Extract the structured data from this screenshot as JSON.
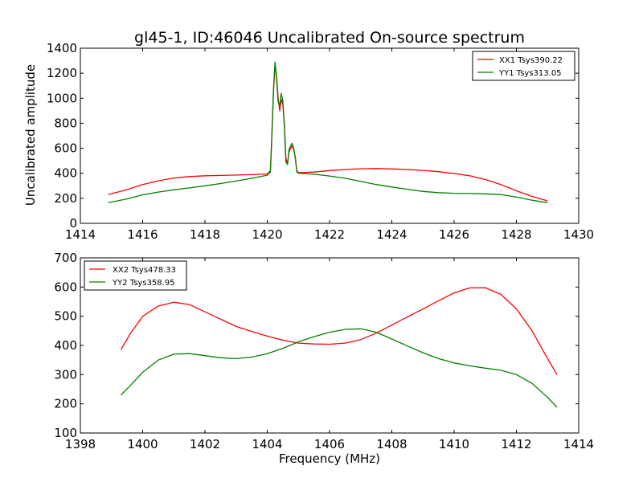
{
  "figure_title": "gl45-1, ID:46046 Uncalibrated On-source spectrum",
  "chart_data": [
    {
      "type": "line",
      "title": "gl45-1, ID:46046 Uncalibrated On-source spectrum",
      "xlabel": "",
      "ylabel": "Uncalibrated amplitude",
      "xlim": [
        1414,
        1430
      ],
      "ylim": [
        0,
        1400
      ],
      "x_ticks": [
        1414,
        1416,
        1418,
        1420,
        1422,
        1424,
        1426,
        1428,
        1430
      ],
      "y_ticks": [
        0,
        200,
        400,
        600,
        800,
        1000,
        1200,
        1400
      ],
      "legend_position": "top-right",
      "series": [
        {
          "name": "XX1 Tsys390.22",
          "color": "#ff0000",
          "points": [
            [
              1414.9,
              230
            ],
            [
              1415.5,
              270
            ],
            [
              1416.0,
              310
            ],
            [
              1416.5,
              340
            ],
            [
              1417.0,
              362
            ],
            [
              1417.5,
              374
            ],
            [
              1418.0,
              380
            ],
            [
              1418.5,
              383
            ],
            [
              1419.0,
              386
            ],
            [
              1419.5,
              389
            ],
            [
              1420.0,
              395
            ],
            [
              1420.1,
              420
            ],
            [
              1420.15,
              700
            ],
            [
              1420.2,
              1050
            ],
            [
              1420.25,
              1270
            ],
            [
              1420.3,
              1180
            ],
            [
              1420.35,
              1000
            ],
            [
              1420.4,
              900
            ],
            [
              1420.45,
              990
            ],
            [
              1420.5,
              950
            ],
            [
              1420.55,
              800
            ],
            [
              1420.6,
              520
            ],
            [
              1420.65,
              480
            ],
            [
              1420.7,
              570
            ],
            [
              1420.75,
              600
            ],
            [
              1420.8,
              620
            ],
            [
              1420.85,
              590
            ],
            [
              1420.9,
              530
            ],
            [
              1420.95,
              420
            ],
            [
              1421.0,
              405
            ],
            [
              1421.5,
              410
            ],
            [
              1422.0,
              422
            ],
            [
              1422.5,
              430
            ],
            [
              1423.0,
              436
            ],
            [
              1423.5,
              438
            ],
            [
              1424.0,
              435
            ],
            [
              1424.5,
              430
            ],
            [
              1425.0,
              423
            ],
            [
              1425.5,
              413
            ],
            [
              1426.0,
              398
            ],
            [
              1426.5,
              380
            ],
            [
              1427.0,
              350
            ],
            [
              1427.5,
              310
            ],
            [
              1428.0,
              260
            ],
            [
              1428.5,
              215
            ],
            [
              1429.0,
              180
            ]
          ]
        },
        {
          "name": "YY1 Tsys313.05",
          "color": "#008000",
          "points": [
            [
              1414.9,
              165
            ],
            [
              1415.5,
              195
            ],
            [
              1416.0,
              228
            ],
            [
              1416.5,
              250
            ],
            [
              1417.0,
              268
            ],
            [
              1417.5,
              283
            ],
            [
              1418.0,
              300
            ],
            [
              1418.5,
              318
            ],
            [
              1419.0,
              338
            ],
            [
              1419.5,
              360
            ],
            [
              1420.0,
              385
            ],
            [
              1420.1,
              410
            ],
            [
              1420.15,
              720
            ],
            [
              1420.2,
              1080
            ],
            [
              1420.25,
              1290
            ],
            [
              1420.3,
              1150
            ],
            [
              1420.35,
              970
            ],
            [
              1420.4,
              940
            ],
            [
              1420.45,
              1040
            ],
            [
              1420.5,
              980
            ],
            [
              1420.55,
              770
            ],
            [
              1420.6,
              490
            ],
            [
              1420.65,
              470
            ],
            [
              1420.7,
              590
            ],
            [
              1420.75,
              620
            ],
            [
              1420.8,
              640
            ],
            [
              1420.85,
              600
            ],
            [
              1420.9,
              520
            ],
            [
              1420.95,
              410
            ],
            [
              1421.0,
              400
            ],
            [
              1421.5,
              393
            ],
            [
              1422.0,
              378
            ],
            [
              1422.5,
              360
            ],
            [
              1423.0,
              335
            ],
            [
              1423.5,
              310
            ],
            [
              1424.0,
              290
            ],
            [
              1424.5,
              272
            ],
            [
              1425.0,
              255
            ],
            [
              1425.5,
              245
            ],
            [
              1426.0,
              240
            ],
            [
              1426.5,
              238
            ],
            [
              1427.0,
              236
            ],
            [
              1427.5,
              230
            ],
            [
              1428.0,
              210
            ],
            [
              1428.5,
              185
            ],
            [
              1429.0,
              165
            ]
          ]
        }
      ]
    },
    {
      "type": "line",
      "title": "",
      "xlabel": "Frequency (MHz)",
      "ylabel": "",
      "xlim": [
        1398,
        1414
      ],
      "ylim": [
        100,
        700
      ],
      "x_ticks": [
        1398,
        1400,
        1402,
        1404,
        1406,
        1408,
        1410,
        1412,
        1414
      ],
      "y_ticks": [
        100,
        200,
        300,
        400,
        500,
        600,
        700
      ],
      "legend_position": "top-left",
      "series": [
        {
          "name": "XX2 Tsys478.33",
          "color": "#ff0000",
          "points": [
            [
              1399.3,
              385
            ],
            [
              1399.6,
              440
            ],
            [
              1400.0,
              500
            ],
            [
              1400.5,
              535
            ],
            [
              1401.0,
              548
            ],
            [
              1401.5,
              540
            ],
            [
              1402.0,
              515
            ],
            [
              1402.5,
              490
            ],
            [
              1403.0,
              465
            ],
            [
              1403.5,
              448
            ],
            [
              1404.0,
              432
            ],
            [
              1404.5,
              418
            ],
            [
              1405.0,
              408
            ],
            [
              1405.5,
              405
            ],
            [
              1406.0,
              404
            ],
            [
              1406.5,
              408
            ],
            [
              1407.0,
              420
            ],
            [
              1407.5,
              442
            ],
            [
              1408.0,
              470
            ],
            [
              1408.5,
              498
            ],
            [
              1409.0,
              525
            ],
            [
              1409.5,
              553
            ],
            [
              1410.0,
              580
            ],
            [
              1410.5,
              597
            ],
            [
              1411.0,
              598
            ],
            [
              1411.5,
              575
            ],
            [
              1412.0,
              525
            ],
            [
              1412.5,
              450
            ],
            [
              1413.0,
              355
            ],
            [
              1413.3,
              300
            ]
          ]
        },
        {
          "name": "YY2 Tsys358.95",
          "color": "#008000",
          "points": [
            [
              1399.3,
              230
            ],
            [
              1399.6,
              262
            ],
            [
              1400.0,
              308
            ],
            [
              1400.5,
              350
            ],
            [
              1401.0,
              370
            ],
            [
              1401.5,
              372
            ],
            [
              1402.0,
              365
            ],
            [
              1402.5,
              358
            ],
            [
              1403.0,
              355
            ],
            [
              1403.5,
              360
            ],
            [
              1404.0,
              372
            ],
            [
              1404.5,
              390
            ],
            [
              1405.0,
              412
            ],
            [
              1405.5,
              430
            ],
            [
              1406.0,
              445
            ],
            [
              1406.5,
              455
            ],
            [
              1407.0,
              457
            ],
            [
              1407.5,
              445
            ],
            [
              1408.0,
              422
            ],
            [
              1408.5,
              398
            ],
            [
              1409.0,
              375
            ],
            [
              1409.5,
              355
            ],
            [
              1410.0,
              340
            ],
            [
              1410.5,
              330
            ],
            [
              1411.0,
              322
            ],
            [
              1411.5,
              315
            ],
            [
              1412.0,
              300
            ],
            [
              1412.5,
              270
            ],
            [
              1413.0,
              222
            ],
            [
              1413.3,
              188
            ]
          ]
        }
      ]
    }
  ]
}
